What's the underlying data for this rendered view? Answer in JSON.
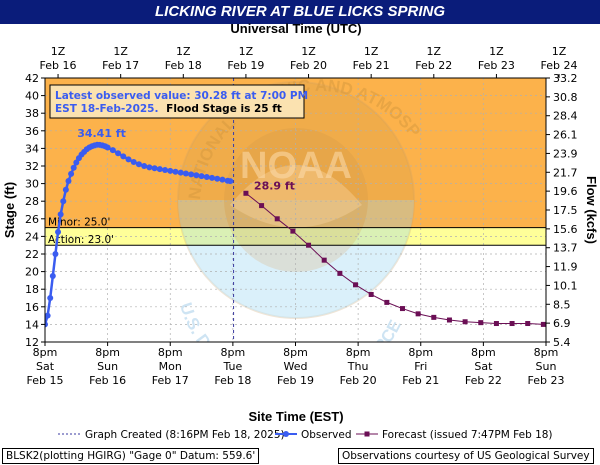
{
  "header": {
    "title": "LICKING RIVER AT BLUE LICKS SPRING"
  },
  "annotation": {
    "line1": "Latest observed value: 30.28 ft at 7:00 PM",
    "line2a": "EST 18-Feb-2025.",
    "line2b": "Flood Stage is 25 ft"
  },
  "colors": {
    "above_flood": "#fcb24b",
    "minor_band": "#ffff99",
    "action_band": "#ffffcc",
    "observed": "#3a5cf0",
    "forecast": "#6b0f55",
    "title_bg": "#0a1c7a"
  },
  "chart_data": {
    "type": "line",
    "top_axis_title": "Universal Time (UTC)",
    "bottom_axis_title": "Site Time (EST)",
    "ylabel_left": "Stage (ft)",
    "ylabel_right": "Flow (kcfs)",
    "ylim": [
      12,
      42
    ],
    "y_ticks": [
      12,
      14,
      16,
      18,
      20,
      22,
      24,
      26,
      28,
      30,
      32,
      34,
      36,
      38,
      40,
      42
    ],
    "right_ticks": [
      "5.4",
      "6.9",
      "8.5",
      "10.1",
      "11.9",
      "13.7",
      "15.6",
      "17.5",
      "19.6",
      "21.7",
      "23.9",
      "26.1",
      "28.4",
      "30.8",
      "33.2"
    ],
    "xlim": [
      "2025-02-15T20:00",
      "2025-02-23T20:00"
    ],
    "bottom_ticks": [
      {
        "time": "2025-02-15T20:00",
        "l1": "8pm",
        "l2": "Sat",
        "l3": "Feb 15"
      },
      {
        "time": "2025-02-16T20:00",
        "l1": "8pm",
        "l2": "Sun",
        "l3": "Feb 16"
      },
      {
        "time": "2025-02-17T20:00",
        "l1": "8pm",
        "l2": "Mon",
        "l3": "Feb 17"
      },
      {
        "time": "2025-02-18T20:00",
        "l1": "8pm",
        "l2": "Tue",
        "l3": "Feb 18"
      },
      {
        "time": "2025-02-19T20:00",
        "l1": "8pm",
        "l2": "Wed",
        "l3": "Feb 19"
      },
      {
        "time": "2025-02-20T20:00",
        "l1": "8pm",
        "l2": "Thu",
        "l3": "Feb 20"
      },
      {
        "time": "2025-02-21T20:00",
        "l1": "8pm",
        "l2": "Fri",
        "l3": "Feb 21"
      },
      {
        "time": "2025-02-22T20:00",
        "l1": "8pm",
        "l2": "Sat",
        "l3": "Feb 22"
      },
      {
        "time": "2025-02-23T20:00",
        "l1": "8pm",
        "l2": "Sun",
        "l3": "Feb 23"
      }
    ],
    "top_ticks": [
      {
        "l1": "1Z",
        "l2": "Feb 16"
      },
      {
        "l1": "1Z",
        "l2": "Feb 17"
      },
      {
        "l1": "1Z",
        "l2": "Feb 18"
      },
      {
        "l1": "1Z",
        "l2": "Feb 19"
      },
      {
        "l1": "1Z",
        "l2": "Feb 20"
      },
      {
        "l1": "1Z",
        "l2": "Feb 21"
      },
      {
        "l1": "1Z",
        "l2": "Feb 22"
      },
      {
        "l1": "1Z",
        "l2": "Feb 23"
      },
      {
        "l1": "1Z",
        "l2": "Feb 24"
      }
    ],
    "flood_stage": 25.0,
    "action_stage": 23.0,
    "thresholds": [
      {
        "label": "Minor: 25.0'",
        "value": 25.0
      },
      {
        "label": "Action: 23.0'",
        "value": 23.0
      }
    ],
    "graph_created": "2025-02-18T20:16",
    "crest_label": "34.41 ft",
    "forecast_start_label": "28.9 ft",
    "series": [
      {
        "name": "Observed",
        "x": [
          "2025-02-15T20:00",
          "2025-02-15T21:00",
          "2025-02-15T22:00",
          "2025-02-15T23:00",
          "2025-02-16T00:00",
          "2025-02-16T01:00",
          "2025-02-16T02:00",
          "2025-02-16T03:00",
          "2025-02-16T04:00",
          "2025-02-16T05:00",
          "2025-02-16T06:00",
          "2025-02-16T07:00",
          "2025-02-16T08:00",
          "2025-02-16T09:00",
          "2025-02-16T10:00",
          "2025-02-16T11:00",
          "2025-02-16T12:00",
          "2025-02-16T13:00",
          "2025-02-16T14:00",
          "2025-02-16T15:00",
          "2025-02-16T16:00",
          "2025-02-16T17:00",
          "2025-02-16T18:00",
          "2025-02-16T19:00",
          "2025-02-16T20:00",
          "2025-02-16T22:00",
          "2025-02-17T00:00",
          "2025-02-17T02:00",
          "2025-02-17T04:00",
          "2025-02-17T06:00",
          "2025-02-17T08:00",
          "2025-02-17T10:00",
          "2025-02-17T12:00",
          "2025-02-17T14:00",
          "2025-02-17T16:00",
          "2025-02-17T18:00",
          "2025-02-17T20:00",
          "2025-02-17T22:00",
          "2025-02-18T00:00",
          "2025-02-18T02:00",
          "2025-02-18T04:00",
          "2025-02-18T06:00",
          "2025-02-18T08:00",
          "2025-02-18T10:00",
          "2025-02-18T12:00",
          "2025-02-18T14:00",
          "2025-02-18T16:00",
          "2025-02-18T18:00",
          "2025-02-18T19:00"
        ],
        "y": [
          14.0,
          15.0,
          17.0,
          19.5,
          22.0,
          24.5,
          26.5,
          28.0,
          29.3,
          30.3,
          31.1,
          31.8,
          32.4,
          32.9,
          33.3,
          33.6,
          33.9,
          34.1,
          34.25,
          34.35,
          34.41,
          34.4,
          34.35,
          34.25,
          34.1,
          33.8,
          33.45,
          33.1,
          32.75,
          32.45,
          32.2,
          32.0,
          31.85,
          31.75,
          31.65,
          31.55,
          31.45,
          31.35,
          31.25,
          31.15,
          31.05,
          30.95,
          30.85,
          30.75,
          30.65,
          30.55,
          30.45,
          30.33,
          30.28
        ]
      },
      {
        "name": "Forecast",
        "x": [
          "2025-02-19T01:00",
          "2025-02-19T07:00",
          "2025-02-19T13:00",
          "2025-02-19T19:00",
          "2025-02-20T01:00",
          "2025-02-20T07:00",
          "2025-02-20T13:00",
          "2025-02-20T19:00",
          "2025-02-21T01:00",
          "2025-02-21T07:00",
          "2025-02-21T13:00",
          "2025-02-21T19:00",
          "2025-02-22T01:00",
          "2025-02-22T07:00",
          "2025-02-22T13:00",
          "2025-02-22T19:00",
          "2025-02-23T01:00",
          "2025-02-23T07:00",
          "2025-02-23T13:00",
          "2025-02-23T19:00"
        ],
        "y": [
          28.9,
          27.5,
          26.0,
          24.6,
          23.0,
          21.3,
          19.8,
          18.5,
          17.4,
          16.5,
          15.8,
          15.2,
          14.8,
          14.5,
          14.3,
          14.2,
          14.1,
          14.1,
          14.1,
          14.0
        ]
      }
    ]
  },
  "legend": {
    "created": "Graph Created (8:16PM Feb 18, 2025)",
    "observed": "Observed",
    "forecast": "Forecast (issued 7:47PM Feb 18)"
  },
  "footer": {
    "left": "BLSK2(plotting HGIRG) \"Gage 0\" Datum: 559.6'",
    "right": "Observations courtesy of US Geological Survey"
  },
  "watermark": {
    "agency_text": "NATIONAL OCEANIC AND ATMOSPHERIC ADMINISTRATION",
    "dept_text": "U.S. DEPARTMENT OF COMMERCE",
    "center_text": "NOAA"
  }
}
